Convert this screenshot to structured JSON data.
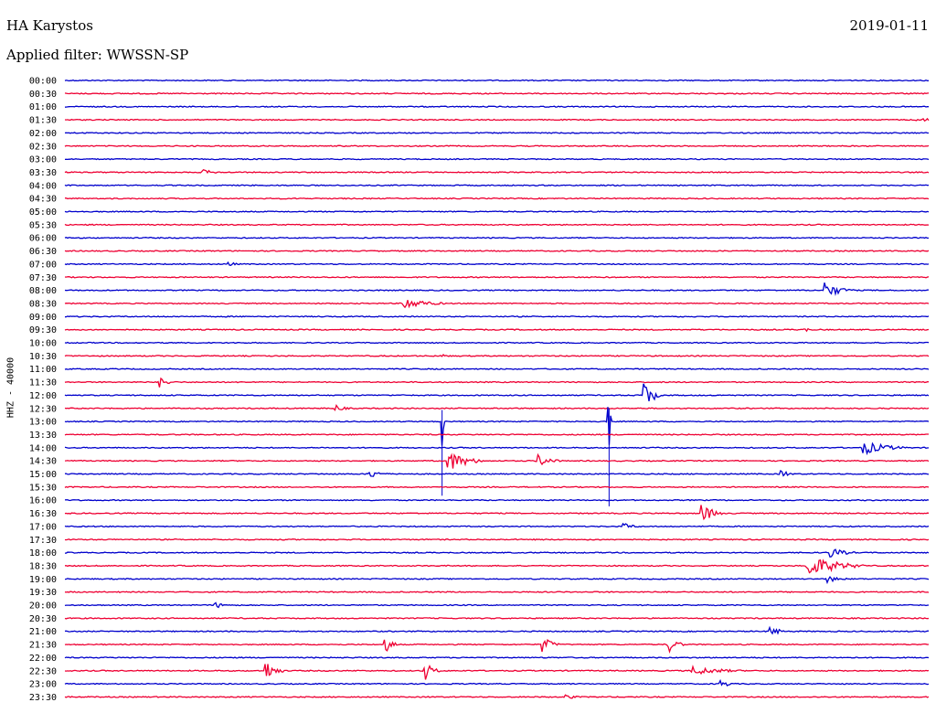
{
  "header": {
    "station": "HA Karystos",
    "date": "2019-01-11",
    "filter": "Applied filter: WWSSN-SP"
  },
  "colors": {
    "even_row": "#0000cc",
    "odd_row": "#ee0033"
  },
  "chart_data": {
    "type": "line",
    "title": "HA Karystos",
    "ylabel": "HHZ - 40000",
    "rows": [
      "00:00",
      "00:30",
      "01:00",
      "01:30",
      "02:00",
      "02:30",
      "03:00",
      "03:30",
      "04:00",
      "04:30",
      "05:00",
      "05:30",
      "06:00",
      "06:30",
      "07:00",
      "07:30",
      "08:00",
      "08:30",
      "09:00",
      "09:30",
      "10:00",
      "10:30",
      "11:00",
      "11:30",
      "12:00",
      "12:30",
      "13:00",
      "13:30",
      "14:00",
      "14:30",
      "15:00",
      "15:30",
      "16:00",
      "16:30",
      "17:00",
      "17:30",
      "18:00",
      "18:30",
      "19:00",
      "19:30",
      "20:00",
      "20:30",
      "21:00",
      "21:30",
      "22:00",
      "22:30",
      "23:00",
      "23:30"
    ],
    "trace_minutes": 30,
    "events": [
      {
        "row": "01:30",
        "minute": 29.6,
        "amplitude": 3,
        "duration": 0.8
      },
      {
        "row": "03:30",
        "minute": 4.8,
        "amplitude": 3,
        "duration": 0.8
      },
      {
        "row": "07:00",
        "minute": 5.7,
        "amplitude": 3,
        "duration": 0.4
      },
      {
        "row": "08:00",
        "minute": 26.4,
        "amplitude": 9,
        "duration": 1.0
      },
      {
        "row": "08:30",
        "minute": 11.8,
        "amplitude": 7,
        "duration": 1.4
      },
      {
        "row": "09:30",
        "minute": 25.7,
        "amplitude": 3,
        "duration": 0.3
      },
      {
        "row": "10:30",
        "minute": 13.1,
        "amplitude": 2,
        "duration": 0.5
      },
      {
        "row": "11:30",
        "minute": 3.3,
        "amplitude": 6,
        "duration": 0.6
      },
      {
        "row": "12:00",
        "minute": 20.1,
        "amplitude": 17,
        "duration": 0.6
      },
      {
        "row": "12:30",
        "minute": 9.4,
        "amplitude": 4,
        "duration": 0.6
      },
      {
        "row": "13:00",
        "minute": 13.1,
        "amplitude": 28,
        "duration": 0.1
      },
      {
        "row": "13:00",
        "minute": 18.9,
        "amplitude": 32,
        "duration": 0.1
      },
      {
        "row": "14:00",
        "minute": 27.7,
        "amplitude": 8,
        "duration": 1.6
      },
      {
        "row": "14:30",
        "minute": 13.3,
        "amplitude": 12,
        "duration": 1.2
      },
      {
        "row": "14:30",
        "minute": 16.4,
        "amplitude": 8,
        "duration": 0.8
      },
      {
        "row": "15:00",
        "minute": 10.6,
        "amplitude": 5,
        "duration": 0.7
      },
      {
        "row": "15:00",
        "minute": 24.9,
        "amplitude": 4,
        "duration": 0.5
      },
      {
        "row": "16:30",
        "minute": 22.1,
        "amplitude": 11,
        "duration": 0.8
      },
      {
        "row": "17:00",
        "minute": 19.4,
        "amplitude": 4,
        "duration": 0.7
      },
      {
        "row": "18:00",
        "minute": 26.6,
        "amplitude": 6,
        "duration": 0.9
      },
      {
        "row": "18:30",
        "minute": 25.8,
        "amplitude": 12,
        "duration": 2.0
      },
      {
        "row": "19:00",
        "minute": 26.5,
        "amplitude": 4,
        "duration": 0.8
      },
      {
        "row": "20:00",
        "minute": 5.2,
        "amplitude": 4,
        "duration": 0.6
      },
      {
        "row": "21:00",
        "minute": 24.5,
        "amplitude": 7,
        "duration": 0.5
      },
      {
        "row": "21:30",
        "minute": 11.1,
        "amplitude": 10,
        "duration": 0.5
      },
      {
        "row": "21:30",
        "minute": 16.6,
        "amplitude": 9,
        "duration": 0.6
      },
      {
        "row": "21:30",
        "minute": 21.0,
        "amplitude": 9,
        "duration": 0.5
      },
      {
        "row": "22:30",
        "minute": 7.0,
        "amplitude": 11,
        "duration": 0.6
      },
      {
        "row": "22:30",
        "minute": 12.5,
        "amplitude": 11,
        "duration": 0.5
      },
      {
        "row": "22:30",
        "minute": 21.8,
        "amplitude": 5,
        "duration": 2.0
      },
      {
        "row": "23:00",
        "minute": 22.8,
        "amplitude": 6,
        "duration": 0.4
      },
      {
        "row": "23:30",
        "minute": 17.4,
        "amplitude": 3,
        "duration": 0.6
      }
    ]
  }
}
